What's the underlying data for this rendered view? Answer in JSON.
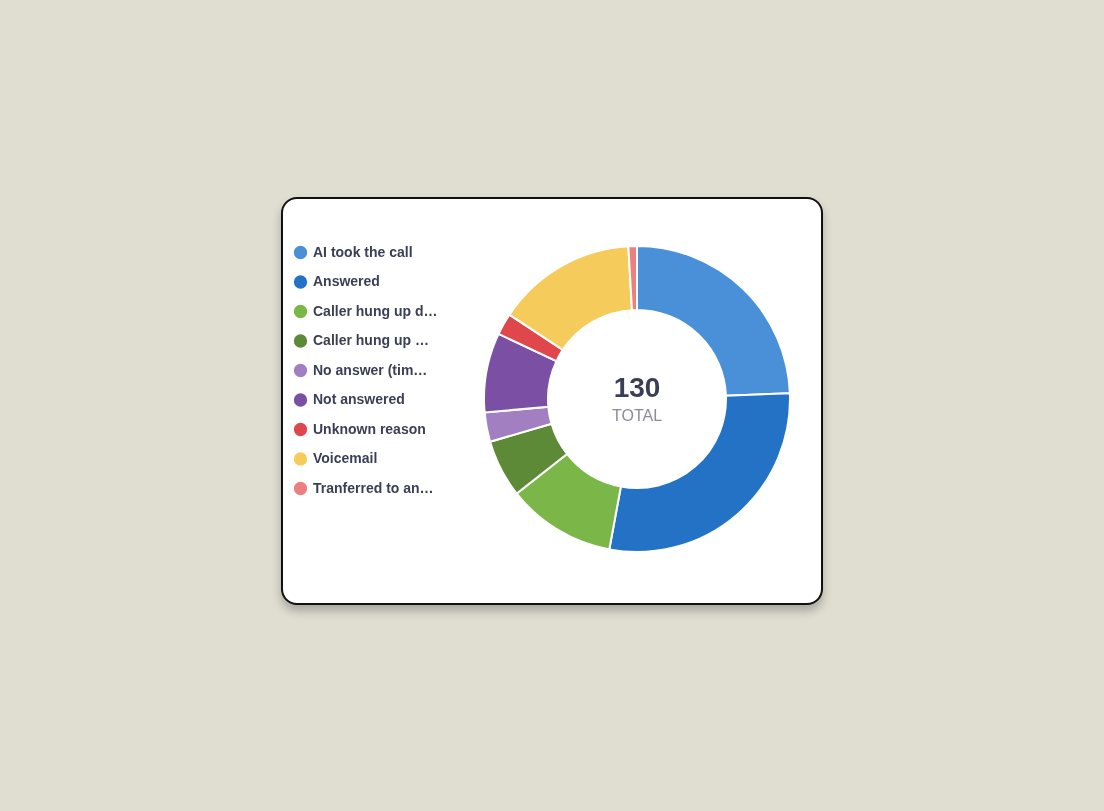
{
  "chart_data": {
    "type": "donut",
    "categories": [
      "AI took the call",
      "Answered",
      "Caller hung up d…",
      "Caller hung up …",
      "No answer (tim…",
      "Not answered",
      "Unknown reason",
      "Voicemail",
      "Tranferred to an…"
    ],
    "values": [
      24.4,
      28.5,
      11.5,
      6.1,
      3.1,
      8.4,
      2.3,
      14.8,
      0.9
    ],
    "colors": [
      "#4a90d9",
      "#2372c6",
      "#7ab648",
      "#5c8a37",
      "#a17fc0",
      "#7b4fa3",
      "#e0474c",
      "#f5cc5c",
      "#ec8080"
    ],
    "annotations": [
      "130",
      "TOTAL"
    ],
    "legend": "left"
  }
}
